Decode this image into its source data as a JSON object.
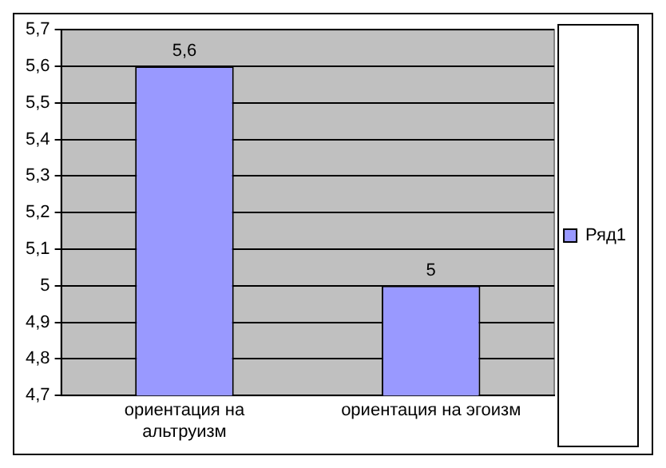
{
  "chart_data": {
    "type": "bar",
    "categories": [
      "ориентация на альтруизм",
      "ориентация на эгоизм"
    ],
    "series": [
      {
        "name": "Ряд1",
        "color": "#9999ff",
        "values": [
          5.6,
          5
        ],
        "value_labels": [
          "5,6",
          "5"
        ]
      }
    ],
    "ylim": [
      4.7,
      5.7
    ],
    "yticks": [
      {
        "value": 4.7,
        "label": "4,7"
      },
      {
        "value": 4.8,
        "label": "4,8"
      },
      {
        "value": 4.9,
        "label": "4,9"
      },
      {
        "value": 5,
        "label": "5"
      },
      {
        "value": 5.1,
        "label": "5,1"
      },
      {
        "value": 5.2,
        "label": "5,2"
      },
      {
        "value": 5.3,
        "label": "5,3"
      },
      {
        "value": 5.4,
        "label": "5,4"
      },
      {
        "value": 5.5,
        "label": "5,5"
      },
      {
        "value": 5.6,
        "label": "5,6"
      },
      {
        "value": 5.7,
        "label": "5,7"
      }
    ],
    "grid": "y",
    "legend": "right"
  }
}
